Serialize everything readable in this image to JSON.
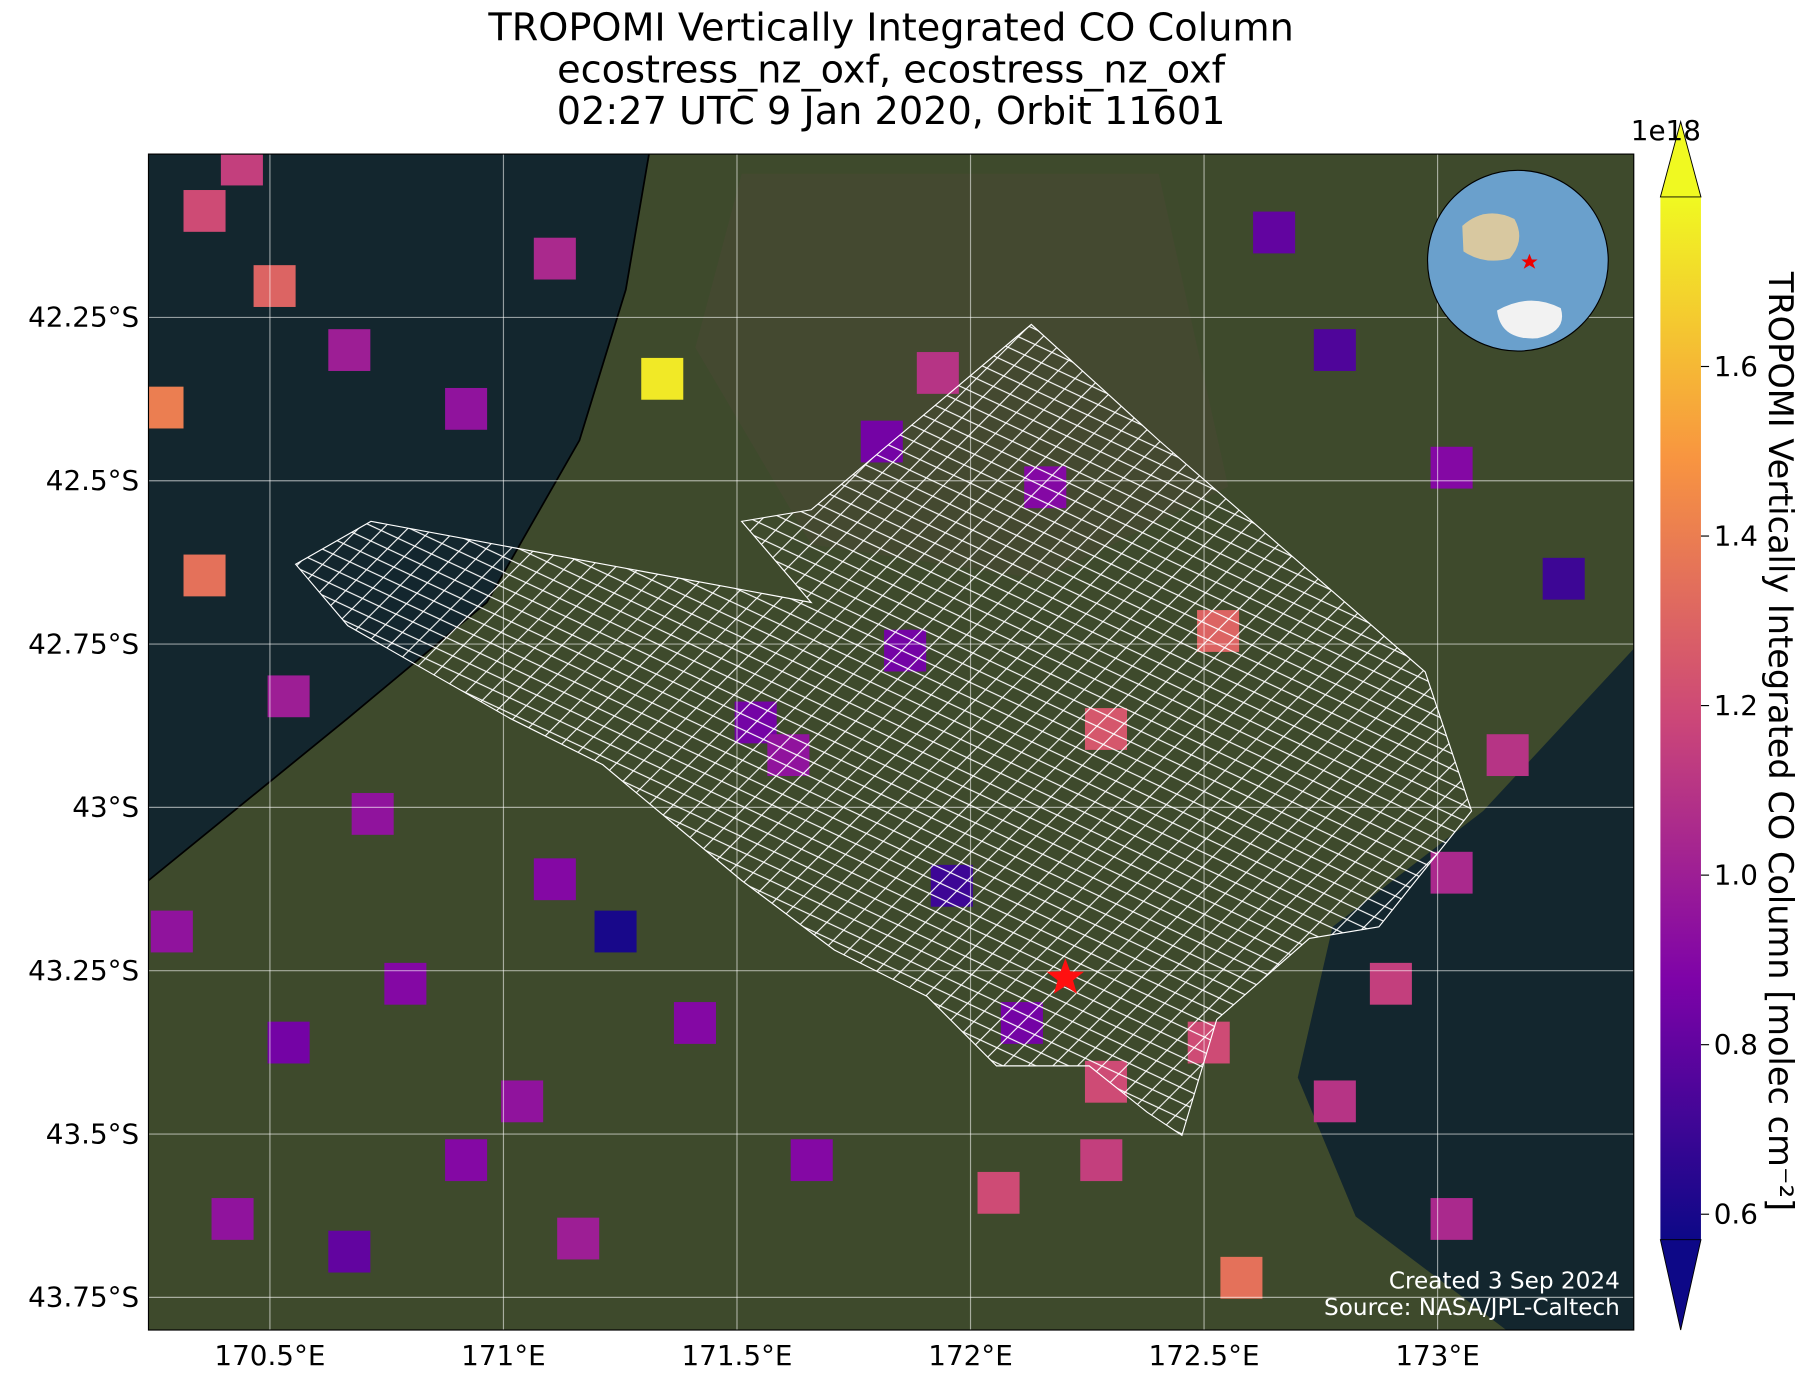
{
  "chart_data": {
    "type": "map",
    "title": [
      "TROPOMI Vertically Integrated CO Column",
      "ecostress_nz_oxf, ecostress_nz_oxf",
      "02:27 UTC 9 Jan 2020, Orbit 11601"
    ],
    "xlim": [
      170.24,
      173.42
    ],
    "ylim": [
      -43.8,
      -42.0
    ],
    "xticks": [
      {
        "value": 170.5,
        "label": "170.5°E"
      },
      {
        "value": 171,
        "label": "171°E"
      },
      {
        "value": 171.5,
        "label": "171.5°E"
      },
      {
        "value": 172,
        "label": "172°E"
      },
      {
        "value": 172.5,
        "label": "172.5°E"
      },
      {
        "value": 173,
        "label": "173°E"
      }
    ],
    "yticks": [
      {
        "value": -42.25,
        "label": "42.25°S"
      },
      {
        "value": -42.5,
        "label": "42.5°S"
      },
      {
        "value": -42.75,
        "label": "42.75°S"
      },
      {
        "value": -43,
        "label": "43°S"
      },
      {
        "value": -43.25,
        "label": "43.25°S"
      },
      {
        "value": -43.5,
        "label": "43.5°S"
      },
      {
        "value": -43.75,
        "label": "43.75°S"
      }
    ],
    "grid": true,
    "colorbar": {
      "label": "TROPOMI Vertically Integrated CO Column [molec cm⁻²]",
      "exponent": "1e18",
      "colormap": "plasma",
      "clim": [
        0.57,
        1.8
      ],
      "ticks": [
        0.6,
        0.8,
        {
          "value": 1.0,
          "label": "1.0"
        },
        1.2,
        1.4,
        1.6
      ]
    },
    "tiles": [
      [
        171.34,
        -42.344,
        1.75
      ],
      [
        170.27,
        -42.388,
        1.4
      ],
      [
        170.36,
        -42.645,
        1.35
      ],
      [
        170.51,
        -42.202,
        1.3
      ],
      [
        170.36,
        -42.087,
        1.2
      ],
      [
        170.67,
        -42.3,
        1.0
      ],
      [
        170.92,
        -42.39,
        0.95
      ],
      [
        171.11,
        -42.16,
        1.05
      ],
      [
        170.54,
        -42.83,
        1.0
      ],
      [
        170.72,
        -43.01,
        0.95
      ],
      [
        170.29,
        -43.19,
        0.95
      ],
      [
        170.54,
        -43.36,
        0.85
      ],
      [
        170.79,
        -43.27,
        0.9
      ],
      [
        171.04,
        -43.45,
        0.95
      ],
      [
        171.11,
        -43.11,
        0.9
      ],
      [
        171.24,
        -43.19,
        0.6
      ],
      [
        171.41,
        -43.33,
        0.9
      ],
      [
        171.54,
        -42.87,
        0.85
      ],
      [
        171.81,
        -42.44,
        0.85
      ],
      [
        171.93,
        -42.335,
        1.1
      ],
      [
        172.16,
        -42.51,
        0.9
      ],
      [
        172.65,
        -42.12,
        0.8
      ],
      [
        172.78,
        -42.3,
        0.75
      ],
      [
        173.03,
        -42.48,
        0.9
      ],
      [
        173.27,
        -42.65,
        0.7
      ],
      [
        173.15,
        -42.92,
        1.1
      ],
      [
        173.03,
        -43.1,
        1.05
      ],
      [
        172.9,
        -43.27,
        1.15
      ],
      [
        172.78,
        -43.45,
        1.1
      ],
      [
        173.03,
        -43.63,
        1.05
      ],
      [
        172.58,
        -43.72,
        1.35
      ],
      [
        172.28,
        -43.54,
        1.15
      ],
      [
        172.06,
        -43.59,
        1.2
      ],
      [
        172.29,
        -43.42,
        1.2
      ],
      [
        172.53,
        -42.73,
        1.3
      ],
      [
        172.29,
        -42.88,
        1.25
      ],
      [
        172.51,
        -43.36,
        1.2
      ],
      [
        170.42,
        -43.63,
        0.95
      ],
      [
        170.67,
        -43.68,
        0.8
      ],
      [
        170.92,
        -43.54,
        0.9
      ],
      [
        171.16,
        -43.66,
        1.0
      ],
      [
        171.66,
        -43.54,
        0.9
      ],
      [
        172.11,
        -43.33,
        0.85
      ],
      [
        171.96,
        -43.12,
        0.7
      ],
      [
        171.86,
        -42.76,
        0.85
      ],
      [
        171.61,
        -42.92,
        0.95
      ],
      [
        170.44,
        -42.016,
        1.15
      ]
    ],
    "site": {
      "lon": 172.203,
      "lat": -43.261
    },
    "credits": [
      "Created 3 Sep 2024",
      "Source: NASA/JPL-Caltech"
    ]
  }
}
